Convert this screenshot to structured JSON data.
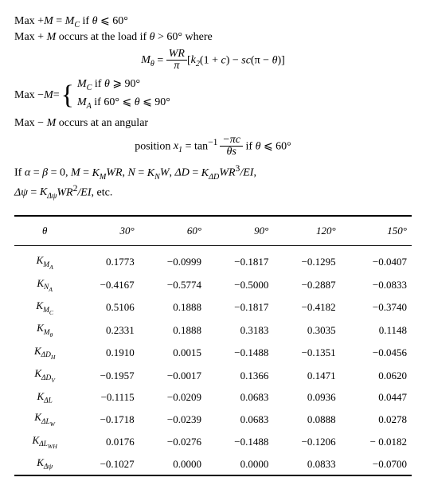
{
  "text": {
    "l1_a": "Max +",
    "l1_b": " = ",
    "l1_c": "   if ",
    "l1_d": " ⩽ 60°",
    "M": "M",
    "MC": "M",
    "MCsub": "C",
    "MA": "M",
    "MAsub": "A",
    "theta": "θ",
    "l2": "Max + ",
    "l2b": " occurs at the load if ",
    "l2c": " > 60° where",
    "eq1_lhs": "M",
    "eq1_lhs_sub": "θ",
    "eq1_eq": " = ",
    "eq1_num": "WR",
    "eq1_den": "π",
    "eq1_rest_a": "[",
    "eq1_k2": "k",
    "eq1_k2sub": "2",
    "eq1_rest_b": "(1 + ",
    "eq1_c": "c",
    "eq1_rest_c": ") − ",
    "eq1_s": "s",
    "eq1_rest_d": "c",
    "eq1_rest_e": "(π − ",
    "eq1_rest_f": ")]",
    "l3": "Max −",
    "l3b": " = ",
    "case1_a": "   if ",
    "case1_b": " ⩾ 90°",
    "case2_a": "   if 60° ⩽ ",
    "case2_b": " ⩽ 90°",
    "l4": "Max − ",
    "l4b": " occurs at an angular",
    "l5a": "position ",
    "x1": "x",
    "x1sub": "1",
    "l5b": " = tan",
    "sup_m1": "−1",
    "frac2_num": "−πc",
    "frac2_den": "θs",
    "l5c": " if ",
    "l5d": " ⩽ 60°",
    "l6a": "If ",
    "alpha": "α",
    "l6b": " = ",
    "beta": "β",
    "l6c": " = 0, ",
    "l6d": " = ",
    "KM": "K",
    "KMsub": "M",
    "l6e": "WR",
    "l6f": ", ",
    "N": "N",
    "KN": "K",
    "KNsub": "N",
    "W": "W",
    "dD": "ΔD",
    "KdD": "K",
    "KdDsub": "ΔD",
    "WR3": "WR",
    "sup3": "3",
    "EI": "/EI",
    "comma": ",",
    "dpsi": "Δψ",
    "Kdpsi": "K",
    "Kdpsisub": "Δψ",
    "WR2": "WR",
    "sup2": "2",
    "etc": ", etc."
  },
  "table": {
    "header_theta": "θ",
    "cols": [
      "30°",
      "60°",
      "90°",
      "120°",
      "150°"
    ],
    "rows": [
      {
        "label_html": "K<sub>M<sub>A</sub></sub>",
        "v": [
          "0.1773",
          "−0.0999",
          "−0.1817",
          "−0.1295",
          "−0.0407"
        ]
      },
      {
        "label_html": "K<sub>N<sub>A</sub></sub>",
        "v": [
          "−0.4167",
          "−0.5774",
          "−0.5000",
          "−0.2887",
          "−0.0833"
        ]
      },
      {
        "label_html": "K<sub>M<sub>C</sub></sub>",
        "v": [
          "0.5106",
          "0.1888",
          "−0.1817",
          "−0.4182",
          "−0.3740"
        ]
      },
      {
        "label_html": "K<sub>M<sub>θ</sub></sub>",
        "v": [
          "0.2331",
          "0.1888",
          "0.3183",
          "0.3035",
          "0.1148"
        ]
      },
      {
        "label_html": "K<sub>ΔD<sub>H</sub></sub>",
        "v": [
          "0.1910",
          "0.0015",
          "−0.1488",
          "−0.1351",
          "−0.0456"
        ]
      },
      {
        "label_html": "K<sub>ΔD<sub>V</sub></sub>",
        "v": [
          "−0.1957",
          "−0.0017",
          "0.1366",
          "0.1471",
          "0.0620"
        ]
      },
      {
        "label_html": "K<sub>ΔL</sub>",
        "v": [
          "−0.1115",
          "−0.0209",
          "0.0683",
          "0.0936",
          "0.0447"
        ]
      },
      {
        "label_html": "K<sub>ΔL<sub>W</sub></sub>",
        "v": [
          "−0.1718",
          "−0.0239",
          "0.0683",
          "0.0888",
          "0.0278"
        ]
      },
      {
        "label_html": "K<sub>ΔL<sub>WH</sub></sub>",
        "v": [
          "0.0176",
          "−0.0276",
          "−0.1488",
          "−0.1206",
          "− 0.0182"
        ]
      },
      {
        "label_html": "K<sub>Δψ</sub>",
        "v": [
          "−0.1027",
          "0.0000",
          "0.0000",
          "0.0833",
          "−0.0700"
        ]
      }
    ]
  }
}
